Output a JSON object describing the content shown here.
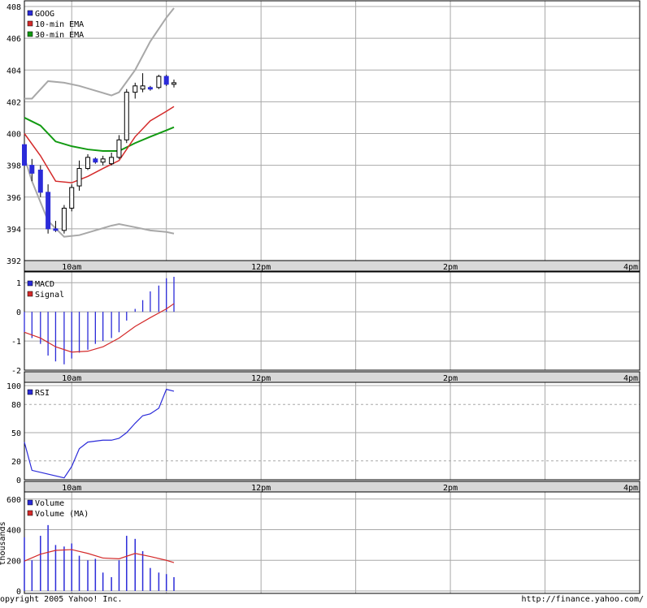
{
  "footer": {
    "copyright": "opyright 2005 Yahoo! Inc.",
    "url": "http://finance.yahoo.com/"
  },
  "time_axis": {
    "labels": [
      "10am",
      "12pm",
      "2pm",
      "4pm"
    ],
    "hours": [
      10,
      12,
      14,
      16
    ],
    "range": [
      9.5,
      16.0
    ],
    "grid_hours": [
      10,
      11,
      12,
      13,
      14,
      15,
      16
    ]
  },
  "colors": {
    "price_up": "#ffffff",
    "price_down": "#2b2bd9",
    "ema10": "#d42a2a",
    "ema30": "#129a12",
    "band": "#a8a8a8",
    "macd": "#2b2bd9",
    "signal": "#d42a2a",
    "rsi": "#2b2bd9",
    "volume": "#2b2bd9",
    "volume_ma": "#d42a2a"
  },
  "chart_data": [
    {
      "type": "candlestick",
      "panel": "price",
      "ylim": [
        392,
        408
      ],
      "yticks": [
        392,
        394,
        396,
        398,
        400,
        402,
        404,
        406,
        408
      ],
      "legend": [
        "GOOG",
        "10-min EMA",
        "30-min EMA"
      ],
      "candles": [
        {
          "t": 9.5,
          "o": 399.3,
          "h": 399.6,
          "l": 397.7,
          "c": 398.0
        },
        {
          "t": 9.58,
          "o": 398.0,
          "h": 398.4,
          "l": 397.0,
          "c": 397.5
        },
        {
          "t": 9.67,
          "o": 397.7,
          "h": 398.0,
          "l": 396.0,
          "c": 396.3
        },
        {
          "t": 9.75,
          "o": 396.3,
          "h": 396.8,
          "l": 393.7,
          "c": 394.0
        },
        {
          "t": 9.83,
          "o": 394.0,
          "h": 394.5,
          "l": 393.8,
          "c": 393.9
        },
        {
          "t": 9.92,
          "o": 393.9,
          "h": 395.5,
          "l": 393.7,
          "c": 395.3
        },
        {
          "t": 10.0,
          "o": 395.3,
          "h": 396.8,
          "l": 395.1,
          "c": 396.6
        },
        {
          "t": 10.08,
          "o": 396.7,
          "h": 398.3,
          "l": 396.4,
          "c": 397.8
        },
        {
          "t": 10.17,
          "o": 397.8,
          "h": 398.7,
          "l": 397.7,
          "c": 398.5
        },
        {
          "t": 10.25,
          "o": 398.4,
          "h": 398.5,
          "l": 398.1,
          "c": 398.2
        },
        {
          "t": 10.33,
          "o": 398.2,
          "h": 398.6,
          "l": 398.0,
          "c": 398.4
        },
        {
          "t": 10.42,
          "o": 398.1,
          "h": 398.8,
          "l": 398.0,
          "c": 398.5
        },
        {
          "t": 10.5,
          "o": 398.5,
          "h": 399.9,
          "l": 398.4,
          "c": 399.6
        },
        {
          "t": 10.58,
          "o": 399.6,
          "h": 402.8,
          "l": 399.4,
          "c": 402.6
        },
        {
          "t": 10.67,
          "o": 402.6,
          "h": 403.2,
          "l": 402.2,
          "c": 403.0
        },
        {
          "t": 10.75,
          "o": 402.8,
          "h": 403.8,
          "l": 402.6,
          "c": 403.0
        },
        {
          "t": 10.83,
          "o": 402.9,
          "h": 403.0,
          "l": 402.7,
          "c": 402.8
        },
        {
          "t": 10.92,
          "o": 402.9,
          "h": 403.7,
          "l": 402.8,
          "c": 403.6
        },
        {
          "t": 11.0,
          "o": 403.6,
          "h": 403.7,
          "l": 403.0,
          "c": 403.1
        },
        {
          "t": 11.08,
          "o": 403.1,
          "h": 403.4,
          "l": 402.9,
          "c": 403.2
        }
      ],
      "ema10": {
        "t": [
          9.5,
          9.67,
          9.83,
          10.0,
          10.17,
          10.33,
          10.5,
          10.67,
          10.83,
          11.0,
          11.08
        ],
        "v": [
          400.0,
          398.6,
          397.0,
          396.9,
          397.3,
          397.8,
          398.3,
          399.8,
          400.8,
          401.4,
          401.7
        ]
      },
      "ema30": {
        "t": [
          9.5,
          9.67,
          9.83,
          10.0,
          10.17,
          10.33,
          10.5,
          10.67,
          10.83,
          11.0,
          11.08
        ],
        "v": [
          401.0,
          400.5,
          399.5,
          399.2,
          399.0,
          398.9,
          398.9,
          399.4,
          399.8,
          400.2,
          400.4
        ]
      },
      "band_upper": {
        "t": [
          9.5,
          9.58,
          9.75,
          9.92,
          10.08,
          10.25,
          10.42,
          10.5,
          10.67,
          10.83,
          11.0,
          11.08
        ],
        "v": [
          402.2,
          402.2,
          403.3,
          403.2,
          403.0,
          402.7,
          402.4,
          402.6,
          404.0,
          405.8,
          407.3,
          407.9
        ]
      },
      "band_lower": {
        "t": [
          9.5,
          9.58,
          9.75,
          9.92,
          10.08,
          10.25,
          10.42,
          10.5,
          10.67,
          10.83,
          11.0,
          11.08
        ],
        "v": [
          398.5,
          397.0,
          394.5,
          393.5,
          393.6,
          393.9,
          394.2,
          394.3,
          394.1,
          393.9,
          393.8,
          393.7
        ]
      }
    },
    {
      "type": "bar",
      "panel": "macd",
      "ylim": [
        -2,
        1.2
      ],
      "yticks": [
        -2,
        -1,
        0,
        1
      ],
      "legend": [
        "MACD",
        "Signal"
      ],
      "macd": {
        "t": [
          9.5,
          9.58,
          9.67,
          9.75,
          9.83,
          9.92,
          10.0,
          10.08,
          10.17,
          10.25,
          10.33,
          10.42,
          10.5,
          10.58,
          10.67,
          10.75,
          10.83,
          10.92,
          11.0,
          11.08
        ],
        "v": [
          -0.7,
          -0.9,
          -1.1,
          -1.5,
          -1.7,
          -1.8,
          -1.6,
          -1.4,
          -1.3,
          -1.1,
          -1.0,
          -0.9,
          -0.7,
          -0.3,
          0.1,
          0.4,
          0.7,
          0.9,
          1.15,
          1.2
        ]
      },
      "signal": {
        "t": [
          9.5,
          9.67,
          9.83,
          10.0,
          10.17,
          10.33,
          10.5,
          10.67,
          10.83,
          11.0,
          11.08
        ],
        "v": [
          -0.7,
          -0.9,
          -1.2,
          -1.38,
          -1.35,
          -1.2,
          -0.9,
          -0.5,
          -0.2,
          0.1,
          0.28
        ]
      }
    },
    {
      "type": "line",
      "panel": "rsi",
      "ylim": [
        0,
        100
      ],
      "yticks": [
        0,
        20,
        50,
        80,
        100
      ],
      "dashed_levels": [
        20,
        80
      ],
      "legend": [
        "RSI"
      ],
      "rsi": {
        "t": [
          9.5,
          9.58,
          9.75,
          9.92,
          10.0,
          10.08,
          10.17,
          10.33,
          10.42,
          10.5,
          10.58,
          10.67,
          10.75,
          10.83,
          10.92,
          11.0,
          11.08
        ],
        "v": [
          40,
          10,
          6,
          2,
          14,
          33,
          40,
          42,
          42,
          44,
          50,
          60,
          68,
          70,
          76,
          96,
          94
        ]
      }
    },
    {
      "type": "bar",
      "panel": "volume",
      "ylim": [
        0,
        620
      ],
      "yticks": [
        0,
        200,
        400,
        600
      ],
      "ylabel": "thousands",
      "legend": [
        "Volume",
        "Volume (MA)"
      ],
      "volume": {
        "t": [
          9.5,
          9.58,
          9.67,
          9.75,
          9.83,
          9.92,
          10.0,
          10.08,
          10.17,
          10.25,
          10.33,
          10.42,
          10.5,
          10.58,
          10.67,
          10.75,
          10.83,
          10.92,
          11.0,
          11.08
        ],
        "v": [
          350,
          200,
          360,
          430,
          300,
          290,
          310,
          230,
          200,
          210,
          120,
          90,
          200,
          360,
          340,
          260,
          150,
          120,
          110,
          90
        ]
      },
      "volume_ma": {
        "t": [
          9.5,
          9.67,
          9.83,
          10.0,
          10.17,
          10.33,
          10.5,
          10.67,
          10.83,
          11.0,
          11.08
        ],
        "v": [
          195,
          240,
          265,
          270,
          245,
          215,
          210,
          245,
          225,
          200,
          185
        ]
      }
    }
  ]
}
